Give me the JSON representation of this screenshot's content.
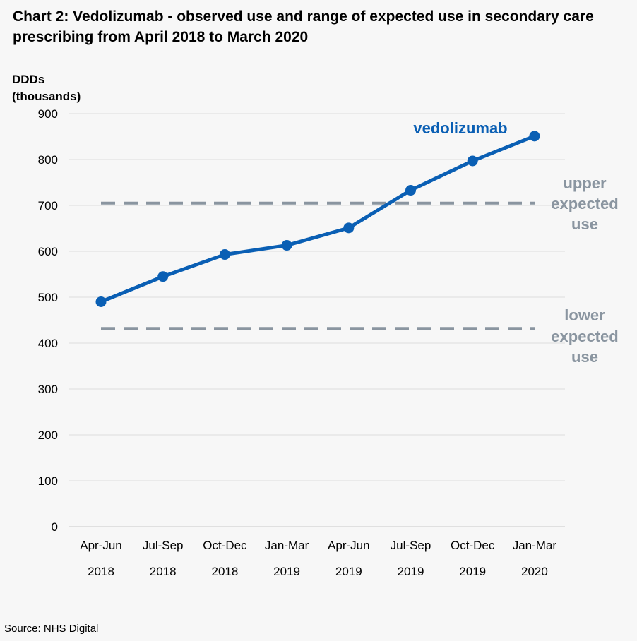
{
  "header": {
    "title": "Chart 2: Vedolizumab - observed use and range of expected use in secondary care prescribing from April 2018 to March 2020"
  },
  "footer": {
    "source": "Source: NHS Digital"
  },
  "chart_data": {
    "type": "line",
    "title": "Chart 2: Vedolizumab - observed use and range of expected use in secondary care prescribing from April 2018 to March 2020",
    "ylabel_lines": [
      "DDDs",
      "(thousands)"
    ],
    "xlabel": "",
    "ylim": [
      0,
      900
    ],
    "yticks": [
      0,
      100,
      200,
      300,
      400,
      500,
      600,
      700,
      800,
      900
    ],
    "grid": true,
    "categories": [
      {
        "period": "Apr-Jun",
        "year": "2018"
      },
      {
        "period": "Jul-Sep",
        "year": "2018"
      },
      {
        "period": "Oct-Dec",
        "year": "2018"
      },
      {
        "period": "Jan-Mar",
        "year": "2019"
      },
      {
        "period": "Apr-Jun",
        "year": "2019"
      },
      {
        "period": "Jul-Sep",
        "year": "2019"
      },
      {
        "period": "Oct-Dec",
        "year": "2019"
      },
      {
        "period": "Jan-Mar",
        "year": "2020"
      }
    ],
    "series": [
      {
        "name": "vedolizumab",
        "color": "#0a5fb4",
        "values": [
          490,
          545,
          593,
          613,
          651,
          733,
          797,
          851
        ]
      }
    ],
    "reference_lines": [
      {
        "name_lines": [
          "upper",
          "expected",
          "use"
        ],
        "value": 705,
        "color": "#8a95a0",
        "style": "dashed"
      },
      {
        "name_lines": [
          "lower",
          "expected",
          "use"
        ],
        "value": 432,
        "color": "#8a95a0",
        "style": "dashed"
      }
    ]
  }
}
